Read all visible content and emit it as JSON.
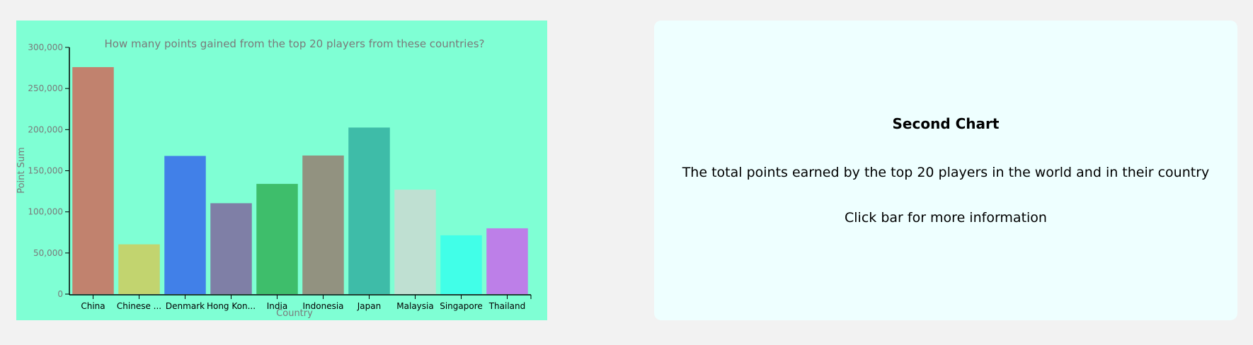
{
  "chart_data": {
    "type": "bar",
    "title": "How many points gained from the top 20 players from these countries?",
    "xlabel": "Country",
    "ylabel": "Point Sum",
    "ylim": [
      0,
      300000
    ],
    "yticks": [
      0,
      50000,
      100000,
      150000,
      200000,
      250000,
      300000
    ],
    "ytick_labels": [
      "0",
      "50,000",
      "100,000",
      "150,000",
      "200,000",
      "250,000",
      "300,000"
    ],
    "categories": [
      "China",
      "Chinese ...",
      "Denmark",
      "Hong Kon...",
      "India",
      "Indonesia",
      "Japan",
      "Malaysia",
      "Singapore",
      "Thailand"
    ],
    "values": [
      276000,
      60500,
      168000,
      110500,
      134000,
      168500,
      202500,
      127000,
      71500,
      80000
    ],
    "colors": [
      "#c1826e",
      "#c2d46f",
      "#4180e8",
      "#7f7fa6",
      "#3ebe6b",
      "#929280",
      "#3ebca8",
      "#bfe0d2",
      "#41ffe8",
      "#bd7fe8"
    ],
    "background": "#7fffd4",
    "grid": false
  },
  "info": {
    "title": "Second Chart",
    "description": "The total points earned by the top 20 players in the world and in their country",
    "hint": "Click bar for more information"
  }
}
